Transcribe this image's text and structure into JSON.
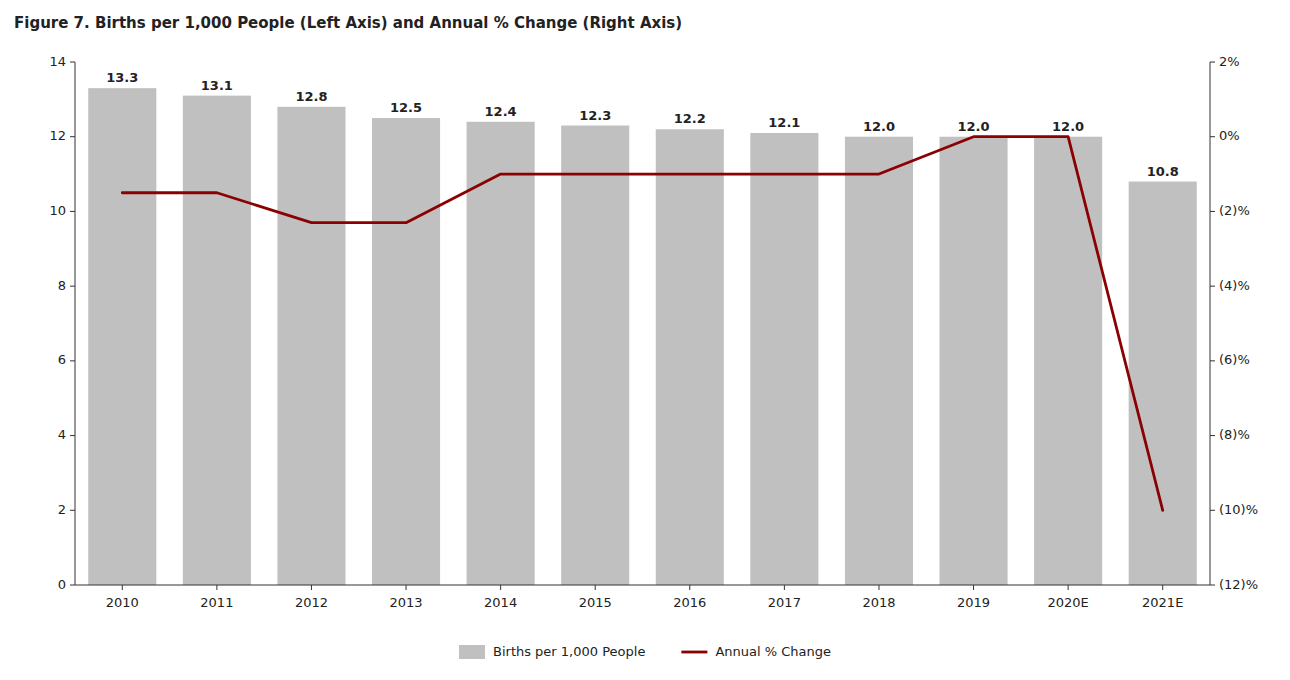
{
  "chart_data": {
    "type": "bar",
    "title": "Figure 7. Births per 1,000 People (Left Axis) and Annual % Change (Right Axis)",
    "categories": [
      "2010",
      "2011",
      "2012",
      "2013",
      "2014",
      "2015",
      "2016",
      "2017",
      "2018",
      "2019",
      "2020E",
      "2021E"
    ],
    "series": [
      {
        "name": "Births per 1,000 People",
        "type": "bar",
        "color": "#c0c0c0",
        "values": [
          13.3,
          13.1,
          12.8,
          12.5,
          12.4,
          12.3,
          12.2,
          12.1,
          12.0,
          12.0,
          12.0,
          10.8
        ],
        "value_labels": [
          "13.3",
          "13.1",
          "12.8",
          "12.5",
          "12.4",
          "12.3",
          "12.2",
          "12.1",
          "12.0",
          "12.0",
          "12.0",
          "10.8"
        ]
      },
      {
        "name": "Annual % Change",
        "type": "line",
        "axis": "y2",
        "color": "#8b0000",
        "values": [
          -1.5,
          -1.5,
          -2.3,
          -2.3,
          -1.0,
          -1.0,
          -1.0,
          -1.0,
          -1.0,
          0.0,
          0.0,
          -10.0
        ]
      }
    ],
    "ylim": [
      0,
      14
    ],
    "yticks": [
      0,
      2,
      4,
      6,
      8,
      10,
      12,
      14
    ],
    "y2lim": [
      -12,
      2
    ],
    "y2ticks": [
      {
        "value": 2,
        "label": "2%"
      },
      {
        "value": 0,
        "label": "0%"
      },
      {
        "value": -2,
        "label": "(2)%"
      },
      {
        "value": -4,
        "label": "(4)%"
      },
      {
        "value": -6,
        "label": "(6)%"
      },
      {
        "value": -8,
        "label": "(8)%"
      },
      {
        "value": -10,
        "label": "(10)%"
      },
      {
        "value": -12,
        "label": "(12)%"
      }
    ],
    "data_labels": true,
    "grid": false,
    "legend": "bottom"
  }
}
